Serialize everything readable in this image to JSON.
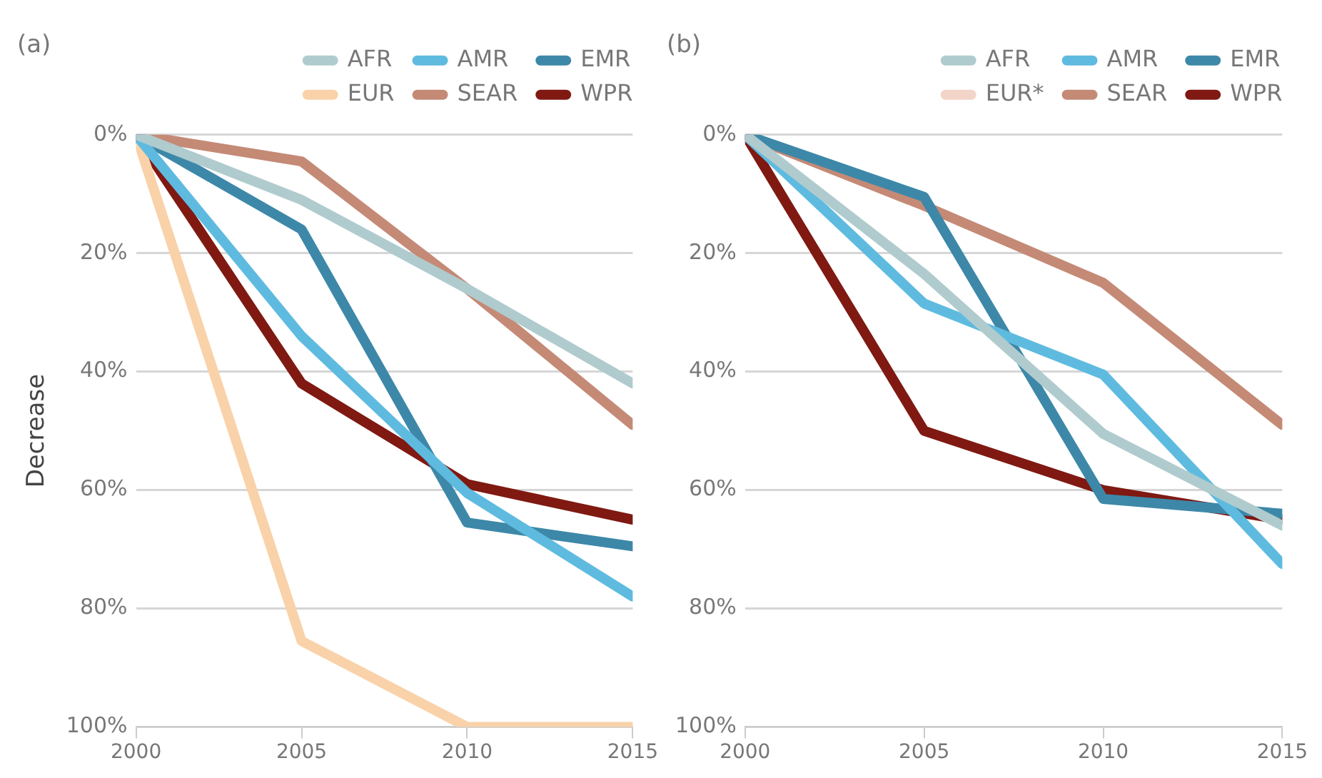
{
  "chart_data": [
    {
      "type": "line",
      "title": "(a)",
      "ylabel": "Decrease",
      "x": [
        2000,
        2005,
        2010,
        2015
      ],
      "xlim": [
        2000,
        2015
      ],
      "xticks": [
        2000,
        2005,
        2010,
        2015
      ],
      "ylim": [
        100,
        0
      ],
      "yticks": [
        {
          "value": 0,
          "label": "0%"
        },
        {
          "value": 20,
          "label": "20%"
        },
        {
          "value": 40,
          "label": "40%"
        },
        {
          "value": 60,
          "label": "60%"
        },
        {
          "value": 80,
          "label": "80%"
        },
        {
          "value": 100,
          "label": "100%"
        }
      ],
      "grid": "y",
      "legend": "top right",
      "marker": "none",
      "line_style": "solid",
      "series": [
        {
          "name": "AFR",
          "color": "#b0cbce",
          "values": [
            0,
            11,
            26,
            42
          ]
        },
        {
          "name": "AMR",
          "color": "#5ebbdf",
          "values": [
            0,
            34,
            60.5,
            78
          ]
        },
        {
          "name": "EMR",
          "color": "#3d88a8",
          "values": [
            0,
            16,
            65.5,
            69.5
          ]
        },
        {
          "name": "EUR",
          "color": "#f9d2a9",
          "values": [
            0,
            85.5,
            100,
            100
          ]
        },
        {
          "name": "SEAR",
          "color": "#c48a76",
          "values": [
            0,
            4.5,
            26,
            49
          ]
        },
        {
          "name": "WPR",
          "color": "#7f1912",
          "values": [
            0,
            42,
            59,
            65
          ]
        }
      ]
    },
    {
      "type": "line",
      "title": "(b)",
      "x": [
        2000,
        2005,
        2010,
        2015
      ],
      "xlim": [
        2000,
        2015
      ],
      "xticks": [
        2000,
        2005,
        2010,
        2015
      ],
      "ylim": [
        100,
        0
      ],
      "yticks": [
        {
          "value": 0,
          "label": "0%"
        },
        {
          "value": 20,
          "label": "20%"
        },
        {
          "value": 40,
          "label": "40%"
        },
        {
          "value": 60,
          "label": "60%"
        },
        {
          "value": 80,
          "label": "80%"
        },
        {
          "value": 100,
          "label": "100%"
        }
      ],
      "grid": "y",
      "legend": "top right",
      "marker": "none",
      "line_style": "solid",
      "series": [
        {
          "name": "AFR",
          "color": "#b0cbce",
          "values": [
            0,
            23.5,
            50.5,
            66
          ]
        },
        {
          "name": "AMR",
          "color": "#5ebbdf",
          "values": [
            0,
            28.5,
            40.5,
            72.5
          ]
        },
        {
          "name": "EMR",
          "color": "#3d88a8",
          "values": [
            0,
            10.5,
            61.5,
            64
          ]
        },
        {
          "name": "EUR*",
          "color": "#f3d4c8",
          "values": [
            null,
            null,
            null,
            null
          ]
        },
        {
          "name": "SEAR",
          "color": "#c48a76",
          "values": [
            0,
            12,
            25,
            49
          ]
        },
        {
          "name": "WPR",
          "color": "#7f1912",
          "values": [
            0,
            50,
            60,
            65
          ]
        }
      ]
    }
  ]
}
